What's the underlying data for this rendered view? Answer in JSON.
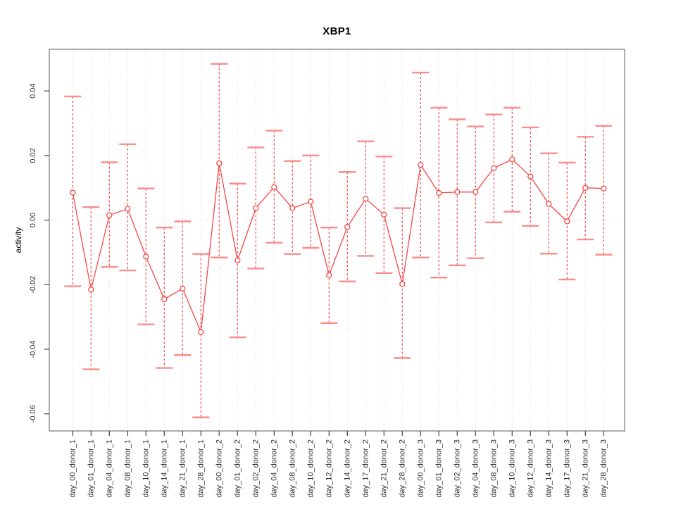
{
  "window": {
    "title": "XBP1"
  },
  "chart_data": {
    "type": "line",
    "subtype": "errorbar-points",
    "title": "XBP1",
    "xlabel": "",
    "ylabel": "activity",
    "ylim": [
      -0.0653,
      0.0529
    ],
    "grid": {
      "vertical_gridlines": "dotted",
      "horizontal_zero_line": "dotted"
    },
    "legend": "none",
    "yticks": {
      "values": [
        0.04,
        0.02,
        0.0,
        -0.02,
        -0.04,
        -0.06
      ],
      "labels": [
        "0.04",
        "0.02",
        "0.00",
        "-0.02",
        "-0.04",
        "-0.06"
      ]
    },
    "categories": [
      "day_00_donor_1",
      "day_01_donor_1",
      "day_04_donor_1",
      "day_08_donor_1",
      "day_10_donor_1",
      "day_14_donor_1",
      "day_21_donor_1",
      "day_28_donor_1",
      "day_00_donor_2",
      "day_01_donor_2",
      "day_02_donor_2",
      "day_04_donor_2",
      "day_08_donor_2",
      "day_10_donor_2",
      "day_12_donor_2",
      "day_14_donor_2",
      "day_17_donor_2",
      "day_21_donor_2",
      "day_28_donor_2",
      "day_00_donor_3",
      "day_01_donor_3",
      "day_02_donor_3",
      "day_04_donor_3",
      "day_08_donor_3",
      "day_10_donor_3",
      "day_12_donor_3",
      "day_14_donor_3",
      "day_17_donor_3",
      "day_21_donor_3",
      "day_28_donor_3"
    ],
    "series": [
      {
        "name": "XBP1 activity",
        "means": [
          0.0085,
          -0.0215,
          0.0015,
          0.0035,
          -0.0113,
          -0.0245,
          -0.0212,
          -0.0347,
          0.0176,
          -0.0125,
          0.0037,
          0.0102,
          0.0037,
          0.0057,
          -0.0171,
          -0.0021,
          0.0066,
          0.0017,
          -0.0198,
          0.0171,
          0.0084,
          0.0087,
          0.0087,
          0.0161,
          0.0188,
          0.0135,
          0.005,
          -0.0004,
          0.01,
          0.0098
        ],
        "lower": [
          -0.0205,
          -0.0462,
          -0.0145,
          -0.0156,
          -0.0323,
          -0.0458,
          -0.0418,
          -0.0611,
          -0.0116,
          -0.0363,
          -0.015,
          -0.007,
          -0.0105,
          -0.0086,
          -0.0319,
          -0.019,
          -0.0111,
          -0.0164,
          -0.0427,
          -0.0116,
          -0.0178,
          -0.014,
          -0.0118,
          -0.0007,
          0.0026,
          -0.0018,
          -0.0104,
          -0.0184,
          -0.006,
          -0.0107
        ],
        "upper": [
          0.0383,
          0.004,
          0.0179,
          0.0235,
          0.0098,
          -0.0023,
          -0.0004,
          -0.0105,
          0.0484,
          0.0113,
          0.0225,
          0.0277,
          0.0183,
          0.02,
          -0.0023,
          0.0149,
          0.0244,
          0.0197,
          0.0037,
          0.0457,
          0.0348,
          0.0312,
          0.029,
          0.0327,
          0.0348,
          0.0287,
          0.0207,
          0.0178,
          0.0258,
          0.0292
        ]
      }
    ],
    "colors": {
      "series": "#F74646",
      "error_caps": "#FA8C8C",
      "point_fill": "#FFFFFF",
      "grid": "#D6D6D6",
      "box": "#8A8A8A",
      "tick": "#444444",
      "tick_text": "#303030",
      "title_text": "#000000",
      "background": "#FFFFFF"
    }
  }
}
